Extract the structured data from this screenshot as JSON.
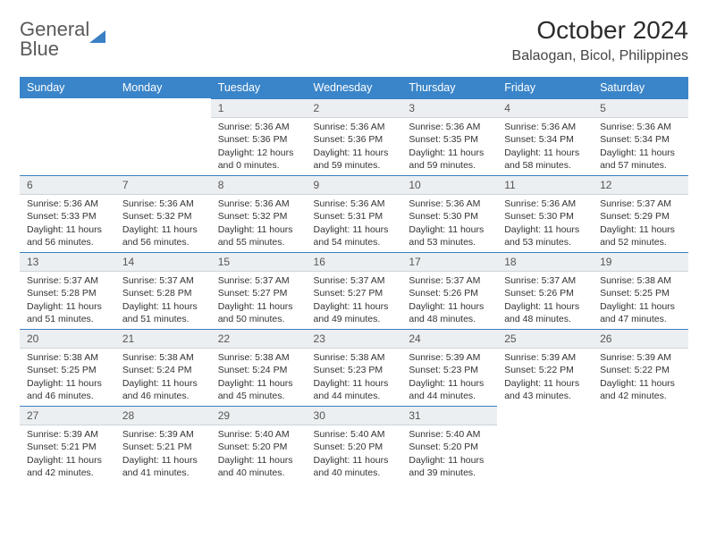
{
  "logo": {
    "line1": "General",
    "line2": "Blue"
  },
  "title": "October 2024",
  "location": "Balaogan, Bicol, Philippines",
  "weekdays": [
    "Sunday",
    "Monday",
    "Tuesday",
    "Wednesday",
    "Thursday",
    "Friday",
    "Saturday"
  ],
  "colors": {
    "header_bg": "#3a85c9",
    "accent": "#3a7fc4",
    "daynum_bg": "#eceff1",
    "text": "#333333"
  },
  "weeks": [
    [
      {
        "n": "",
        "sr": "",
        "ss": "",
        "dl": "",
        "empty": true
      },
      {
        "n": "",
        "sr": "",
        "ss": "",
        "dl": "",
        "empty": true
      },
      {
        "n": "1",
        "sr": "Sunrise: 5:36 AM",
        "ss": "Sunset: 5:36 PM",
        "dl": "Daylight: 12 hours and 0 minutes."
      },
      {
        "n": "2",
        "sr": "Sunrise: 5:36 AM",
        "ss": "Sunset: 5:36 PM",
        "dl": "Daylight: 11 hours and 59 minutes."
      },
      {
        "n": "3",
        "sr": "Sunrise: 5:36 AM",
        "ss": "Sunset: 5:35 PM",
        "dl": "Daylight: 11 hours and 59 minutes."
      },
      {
        "n": "4",
        "sr": "Sunrise: 5:36 AM",
        "ss": "Sunset: 5:34 PM",
        "dl": "Daylight: 11 hours and 58 minutes."
      },
      {
        "n": "5",
        "sr": "Sunrise: 5:36 AM",
        "ss": "Sunset: 5:34 PM",
        "dl": "Daylight: 11 hours and 57 minutes."
      }
    ],
    [
      {
        "n": "6",
        "sr": "Sunrise: 5:36 AM",
        "ss": "Sunset: 5:33 PM",
        "dl": "Daylight: 11 hours and 56 minutes."
      },
      {
        "n": "7",
        "sr": "Sunrise: 5:36 AM",
        "ss": "Sunset: 5:32 PM",
        "dl": "Daylight: 11 hours and 56 minutes."
      },
      {
        "n": "8",
        "sr": "Sunrise: 5:36 AM",
        "ss": "Sunset: 5:32 PM",
        "dl": "Daylight: 11 hours and 55 minutes."
      },
      {
        "n": "9",
        "sr": "Sunrise: 5:36 AM",
        "ss": "Sunset: 5:31 PM",
        "dl": "Daylight: 11 hours and 54 minutes."
      },
      {
        "n": "10",
        "sr": "Sunrise: 5:36 AM",
        "ss": "Sunset: 5:30 PM",
        "dl": "Daylight: 11 hours and 53 minutes."
      },
      {
        "n": "11",
        "sr": "Sunrise: 5:36 AM",
        "ss": "Sunset: 5:30 PM",
        "dl": "Daylight: 11 hours and 53 minutes."
      },
      {
        "n": "12",
        "sr": "Sunrise: 5:37 AM",
        "ss": "Sunset: 5:29 PM",
        "dl": "Daylight: 11 hours and 52 minutes."
      }
    ],
    [
      {
        "n": "13",
        "sr": "Sunrise: 5:37 AM",
        "ss": "Sunset: 5:28 PM",
        "dl": "Daylight: 11 hours and 51 minutes."
      },
      {
        "n": "14",
        "sr": "Sunrise: 5:37 AM",
        "ss": "Sunset: 5:28 PM",
        "dl": "Daylight: 11 hours and 51 minutes."
      },
      {
        "n": "15",
        "sr": "Sunrise: 5:37 AM",
        "ss": "Sunset: 5:27 PM",
        "dl": "Daylight: 11 hours and 50 minutes."
      },
      {
        "n": "16",
        "sr": "Sunrise: 5:37 AM",
        "ss": "Sunset: 5:27 PM",
        "dl": "Daylight: 11 hours and 49 minutes."
      },
      {
        "n": "17",
        "sr": "Sunrise: 5:37 AM",
        "ss": "Sunset: 5:26 PM",
        "dl": "Daylight: 11 hours and 48 minutes."
      },
      {
        "n": "18",
        "sr": "Sunrise: 5:37 AM",
        "ss": "Sunset: 5:26 PM",
        "dl": "Daylight: 11 hours and 48 minutes."
      },
      {
        "n": "19",
        "sr": "Sunrise: 5:38 AM",
        "ss": "Sunset: 5:25 PM",
        "dl": "Daylight: 11 hours and 47 minutes."
      }
    ],
    [
      {
        "n": "20",
        "sr": "Sunrise: 5:38 AM",
        "ss": "Sunset: 5:25 PM",
        "dl": "Daylight: 11 hours and 46 minutes."
      },
      {
        "n": "21",
        "sr": "Sunrise: 5:38 AM",
        "ss": "Sunset: 5:24 PM",
        "dl": "Daylight: 11 hours and 46 minutes."
      },
      {
        "n": "22",
        "sr": "Sunrise: 5:38 AM",
        "ss": "Sunset: 5:24 PM",
        "dl": "Daylight: 11 hours and 45 minutes."
      },
      {
        "n": "23",
        "sr": "Sunrise: 5:38 AM",
        "ss": "Sunset: 5:23 PM",
        "dl": "Daylight: 11 hours and 44 minutes."
      },
      {
        "n": "24",
        "sr": "Sunrise: 5:39 AM",
        "ss": "Sunset: 5:23 PM",
        "dl": "Daylight: 11 hours and 44 minutes."
      },
      {
        "n": "25",
        "sr": "Sunrise: 5:39 AM",
        "ss": "Sunset: 5:22 PM",
        "dl": "Daylight: 11 hours and 43 minutes."
      },
      {
        "n": "26",
        "sr": "Sunrise: 5:39 AM",
        "ss": "Sunset: 5:22 PM",
        "dl": "Daylight: 11 hours and 42 minutes."
      }
    ],
    [
      {
        "n": "27",
        "sr": "Sunrise: 5:39 AM",
        "ss": "Sunset: 5:21 PM",
        "dl": "Daylight: 11 hours and 42 minutes."
      },
      {
        "n": "28",
        "sr": "Sunrise: 5:39 AM",
        "ss": "Sunset: 5:21 PM",
        "dl": "Daylight: 11 hours and 41 minutes."
      },
      {
        "n": "29",
        "sr": "Sunrise: 5:40 AM",
        "ss": "Sunset: 5:20 PM",
        "dl": "Daylight: 11 hours and 40 minutes."
      },
      {
        "n": "30",
        "sr": "Sunrise: 5:40 AM",
        "ss": "Sunset: 5:20 PM",
        "dl": "Daylight: 11 hours and 40 minutes."
      },
      {
        "n": "31",
        "sr": "Sunrise: 5:40 AM",
        "ss": "Sunset: 5:20 PM",
        "dl": "Daylight: 11 hours and 39 minutes."
      },
      {
        "n": "",
        "sr": "",
        "ss": "",
        "dl": "",
        "empty": true
      },
      {
        "n": "",
        "sr": "",
        "ss": "",
        "dl": "",
        "empty": true
      }
    ]
  ]
}
